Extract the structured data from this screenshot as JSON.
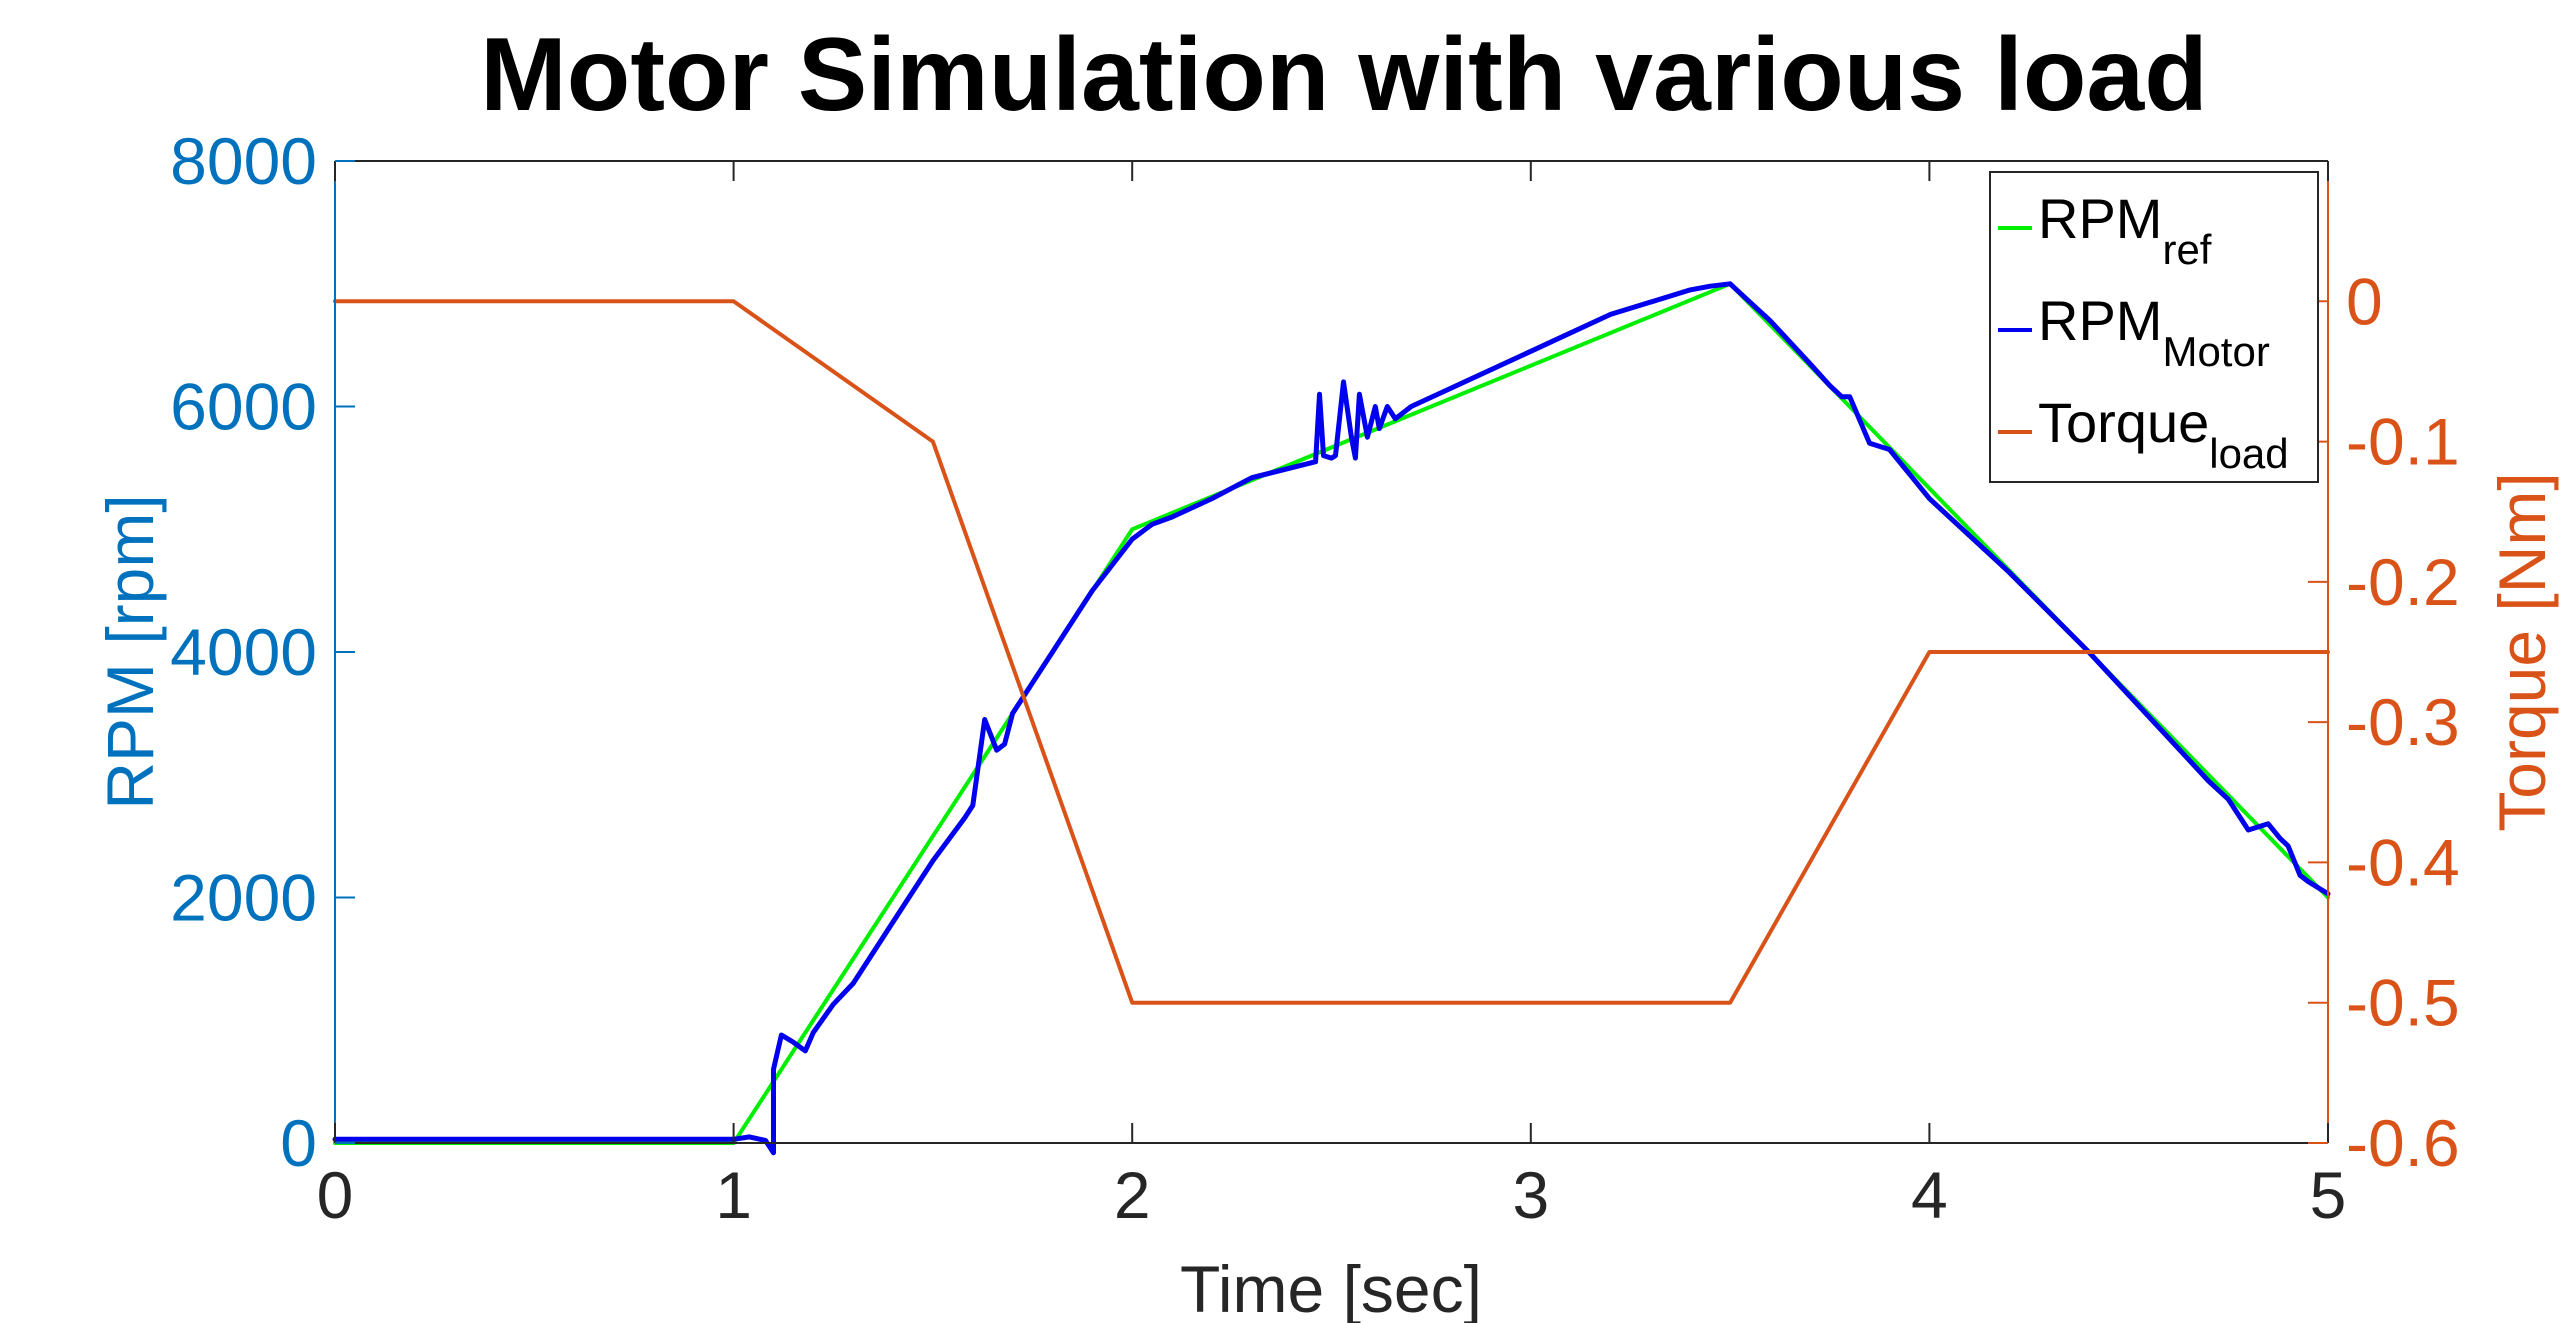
{
  "chart_data": {
    "type": "line",
    "title": "Motor Simulation with various load",
    "xlabel": "Time [sec]",
    "ylabel_left": "RPM [rpm]",
    "ylabel_right": "Torque [Nm]",
    "xlim": [
      0,
      5
    ],
    "ylim_left": [
      0,
      8000
    ],
    "ylim_right": [
      -0.6,
      0.1
    ],
    "x_ticks": [
      "0",
      "1",
      "2",
      "3",
      "4",
      "5"
    ],
    "y_ticks_left": [
      "0",
      "2000",
      "4000",
      "6000",
      "8000"
    ],
    "y_ticks_right": [
      "-0.6",
      "-0.5",
      "-0.4",
      "-0.3",
      "-0.2",
      "-0.1",
      "0"
    ],
    "grid": false,
    "legend_position": "top-right",
    "colors": {
      "left_axis": "#0072bd",
      "right_axis": "#d95319",
      "ref": "#00ee00",
      "motor": "#0000ee",
      "torque": "#d95319"
    },
    "series": [
      {
        "name": "RPM",
        "subscript": "ref",
        "axis": "left",
        "color": "#00ee00",
        "x": [
          0,
          1.0,
          2.0,
          3.5,
          5.0
        ],
        "y": [
          0,
          0,
          5000,
          7000,
          2000
        ]
      },
      {
        "name": "RPM",
        "subscript": "Motor",
        "axis": "left",
        "color": "#0000ee",
        "x": [
          0,
          1.0,
          1.04,
          1.08,
          1.1,
          1.1,
          1.12,
          1.15,
          1.18,
          1.2,
          1.25,
          1.3,
          1.4,
          1.5,
          1.58,
          1.6,
          1.6,
          1.63,
          1.66,
          1.68,
          1.7,
          1.8,
          1.9,
          2.0,
          2.05,
          2.1,
          2.2,
          2.3,
          2.46,
          2.47,
          2.48,
          2.5,
          2.5,
          2.51,
          2.53,
          2.55,
          2.56,
          2.57,
          2.59,
          2.61,
          2.62,
          2.64,
          2.66,
          2.7,
          2.8,
          3.0,
          3.2,
          3.4,
          3.45,
          3.5,
          3.55,
          3.6,
          3.7,
          3.75,
          3.78,
          3.8,
          3.85,
          3.9,
          4.0,
          4.2,
          4.4,
          4.6,
          4.7,
          4.75,
          4.8,
          4.85,
          4.88,
          4.9,
          4.93,
          4.95,
          5.0
        ],
        "y": [
          30,
          30,
          50,
          20,
          -80,
          600,
          880,
          820,
          750,
          900,
          1130,
          1300,
          1800,
          2300,
          2650,
          2750,
          2750,
          3450,
          3200,
          3250,
          3500,
          4000,
          4500,
          4920,
          5040,
          5100,
          5250,
          5420,
          5550,
          6100,
          5600,
          5580,
          5580,
          5600,
          6200,
          5750,
          5580,
          6100,
          5750,
          6000,
          5820,
          6000,
          5900,
          6000,
          6150,
          6450,
          6750,
          6950,
          6980,
          7000,
          6850,
          6700,
          6350,
          6170,
          6080,
          6080,
          5700,
          5650,
          5250,
          4650,
          4000,
          3300,
          2950,
          2800,
          2550,
          2600,
          2480,
          2420,
          2180,
          2130,
          2030
        ]
      },
      {
        "name": "Torque",
        "subscript": "load",
        "axis": "right",
        "color": "#d95319",
        "x": [
          0,
          1.0,
          1.5,
          2.0,
          3.5,
          4.0,
          5.0
        ],
        "y": [
          0,
          0,
          -0.1,
          -0.5,
          -0.5,
          -0.25,
          -0.25
        ]
      }
    ]
  }
}
